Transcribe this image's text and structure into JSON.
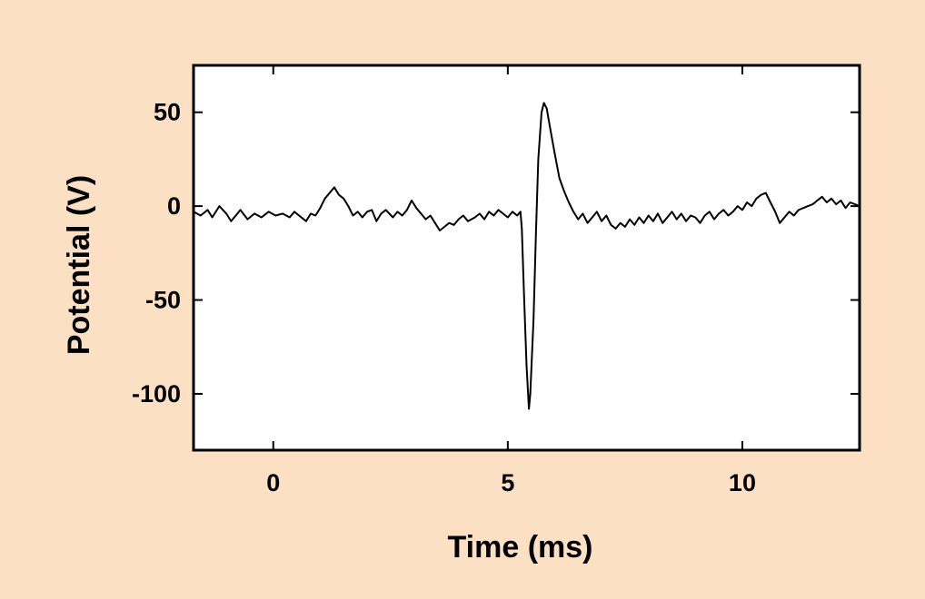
{
  "colors": {
    "background": "#fbe0c4",
    "plot_background": "#ffffff",
    "axis": "#000000",
    "trace": "#000000"
  },
  "chart_data": {
    "type": "line",
    "title": "",
    "xlabel": "Time (ms)",
    "ylabel": "Potential (V)",
    "xlim": [
      -1.7,
      12.5
    ],
    "ylim": [
      -130,
      75
    ],
    "xticks": [
      0,
      5,
      10
    ],
    "xtick_labels": [
      "0",
      "5",
      "10"
    ],
    "yticks": [
      50,
      0,
      -50,
      -100
    ],
    "ytick_labels": [
      "50",
      "0",
      "-50",
      "-100"
    ],
    "grid": false,
    "legend": "none",
    "series": [
      {
        "points": [
          [
            -1.7,
            -3
          ],
          [
            -1.55,
            -5
          ],
          [
            -1.4,
            -2
          ],
          [
            -1.3,
            -6
          ],
          [
            -1.15,
            0
          ],
          [
            -1.0,
            -4
          ],
          [
            -0.9,
            -8
          ],
          [
            -0.8,
            -5
          ],
          [
            -0.7,
            -2
          ],
          [
            -0.55,
            -7
          ],
          [
            -0.4,
            -4
          ],
          [
            -0.25,
            -6
          ],
          [
            -0.1,
            -3
          ],
          [
            0.05,
            -5
          ],
          [
            0.2,
            -4
          ],
          [
            0.35,
            -6
          ],
          [
            0.45,
            -3
          ],
          [
            0.55,
            -5
          ],
          [
            0.7,
            -8
          ],
          [
            0.8,
            -4
          ],
          [
            0.9,
            -5
          ],
          [
            1.0,
            -1
          ],
          [
            1.1,
            4
          ],
          [
            1.2,
            7
          ],
          [
            1.3,
            10
          ],
          [
            1.4,
            6
          ],
          [
            1.5,
            4
          ],
          [
            1.6,
            0
          ],
          [
            1.7,
            -5
          ],
          [
            1.8,
            -3
          ],
          [
            1.9,
            -6
          ],
          [
            2.0,
            -3
          ],
          [
            2.1,
            -2
          ],
          [
            2.2,
            -8
          ],
          [
            2.3,
            -4
          ],
          [
            2.4,
            -2
          ],
          [
            2.55,
            -6
          ],
          [
            2.65,
            -3
          ],
          [
            2.75,
            -5
          ],
          [
            2.85,
            -2
          ],
          [
            2.95,
            3
          ],
          [
            3.05,
            -1
          ],
          [
            3.15,
            -4
          ],
          [
            3.25,
            -7
          ],
          [
            3.35,
            -5
          ],
          [
            3.45,
            -9
          ],
          [
            3.55,
            -13
          ],
          [
            3.65,
            -11
          ],
          [
            3.75,
            -9
          ],
          [
            3.85,
            -10
          ],
          [
            3.95,
            -7
          ],
          [
            4.05,
            -5
          ],
          [
            4.15,
            -8
          ],
          [
            4.3,
            -6
          ],
          [
            4.4,
            -4
          ],
          [
            4.5,
            -7
          ],
          [
            4.6,
            -3
          ],
          [
            4.7,
            -5
          ],
          [
            4.8,
            -2
          ],
          [
            4.9,
            -4
          ],
          [
            5.0,
            -6
          ],
          [
            5.1,
            -3
          ],
          [
            5.2,
            -5
          ],
          [
            5.27,
            -3
          ],
          [
            5.3,
            -12
          ],
          [
            5.35,
            -50
          ],
          [
            5.4,
            -85
          ],
          [
            5.45,
            -108
          ],
          [
            5.48,
            -100
          ],
          [
            5.55,
            -60
          ],
          [
            5.6,
            -15
          ],
          [
            5.65,
            25
          ],
          [
            5.72,
            50
          ],
          [
            5.77,
            55
          ],
          [
            5.83,
            52
          ],
          [
            5.9,
            42
          ],
          [
            6.0,
            28
          ],
          [
            6.1,
            15
          ],
          [
            6.2,
            8
          ],
          [
            6.3,
            2
          ],
          [
            6.4,
            -3
          ],
          [
            6.5,
            -7
          ],
          [
            6.6,
            -4
          ],
          [
            6.7,
            -9
          ],
          [
            6.8,
            -6
          ],
          [
            6.9,
            -3
          ],
          [
            7.0,
            -8
          ],
          [
            7.1,
            -5
          ],
          [
            7.2,
            -10
          ],
          [
            7.3,
            -12
          ],
          [
            7.4,
            -9
          ],
          [
            7.5,
            -11
          ],
          [
            7.6,
            -7
          ],
          [
            7.7,
            -10
          ],
          [
            7.8,
            -6
          ],
          [
            7.9,
            -9
          ],
          [
            8.0,
            -5
          ],
          [
            8.1,
            -8
          ],
          [
            8.2,
            -4
          ],
          [
            8.3,
            -9
          ],
          [
            8.4,
            -6
          ],
          [
            8.5,
            -3
          ],
          [
            8.6,
            -7
          ],
          [
            8.7,
            -4
          ],
          [
            8.8,
            -8
          ],
          [
            8.9,
            -5
          ],
          [
            9.0,
            -6
          ],
          [
            9.1,
            -9
          ],
          [
            9.2,
            -5
          ],
          [
            9.3,
            -3
          ],
          [
            9.4,
            -7
          ],
          [
            9.5,
            -4
          ],
          [
            9.6,
            -2
          ],
          [
            9.7,
            -5
          ],
          [
            9.8,
            -3
          ],
          [
            9.9,
            0
          ],
          [
            10.0,
            -2
          ],
          [
            10.1,
            2
          ],
          [
            10.2,
            0
          ],
          [
            10.3,
            4
          ],
          [
            10.4,
            6
          ],
          [
            10.5,
            7
          ],
          [
            10.6,
            2
          ],
          [
            10.7,
            -3
          ],
          [
            10.8,
            -9
          ],
          [
            10.9,
            -6
          ],
          [
            11.0,
            -3
          ],
          [
            11.1,
            -5
          ],
          [
            11.2,
            -2
          ],
          [
            11.3,
            -1
          ],
          [
            11.4,
            0
          ],
          [
            11.5,
            1
          ],
          [
            11.6,
            3
          ],
          [
            11.7,
            5
          ],
          [
            11.8,
            2
          ],
          [
            11.9,
            4
          ],
          [
            12.0,
            1
          ],
          [
            12.1,
            3
          ],
          [
            12.2,
            -1
          ],
          [
            12.3,
            2
          ],
          [
            12.5,
            0
          ]
        ]
      }
    ]
  }
}
